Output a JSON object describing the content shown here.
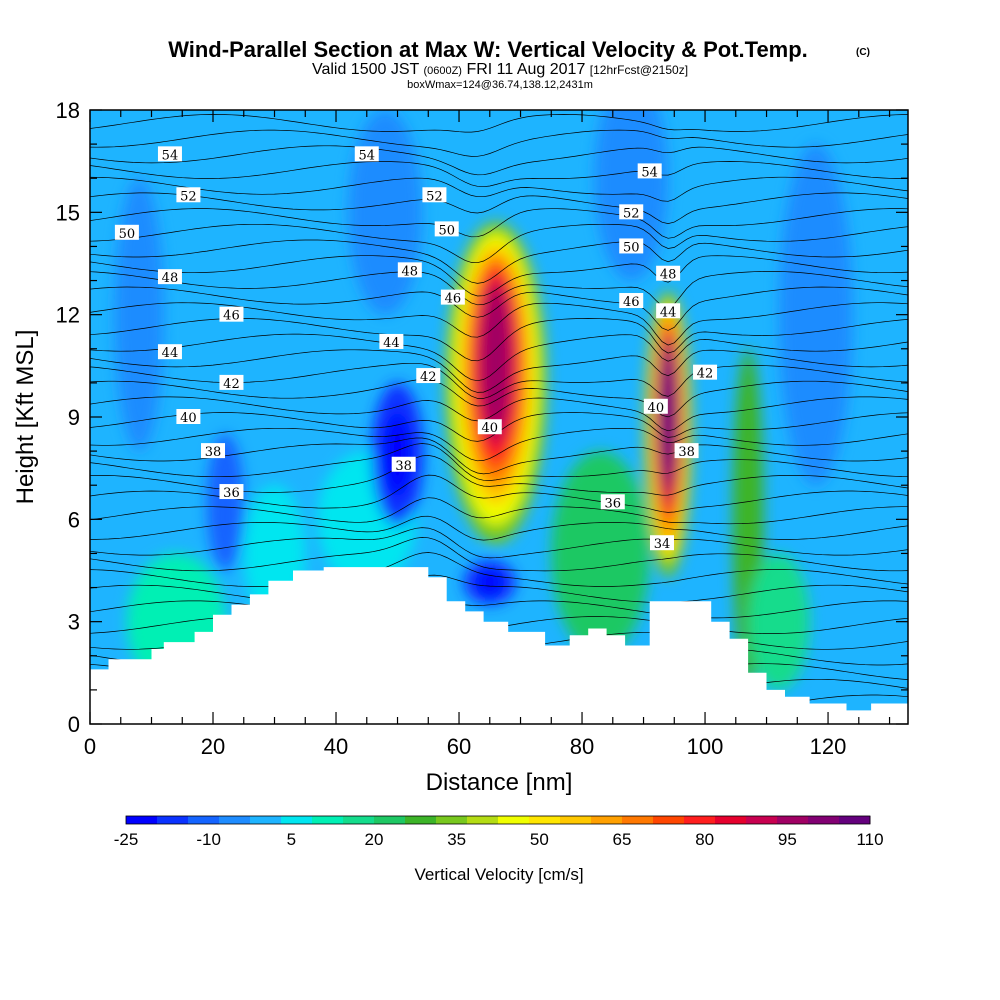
{
  "title": {
    "main": "Wind-Parallel Section at Max W: Vertical Velocity & Pot.Temp.",
    "copyright": "(C)",
    "valid_prefix": "Valid 1500 JST",
    "valid_utc": "(0600Z)",
    "valid_date": "FRI 11 Aug 2017",
    "forecast": "[12hrFcst@2150z]",
    "box": "boxWmax=124@36.74,138.12,2431m"
  },
  "chart_data": {
    "type": "heatmap",
    "xlabel": "Distance [nm]",
    "ylabel": "Height [Kft MSL]",
    "xlim": [
      0,
      133
    ],
    "ylim": [
      0,
      18
    ],
    "x_ticks": [
      0,
      20,
      40,
      60,
      80,
      100,
      120
    ],
    "y_ticks": [
      0,
      3,
      6,
      9,
      12,
      15,
      18
    ],
    "colorbar": {
      "label": "Vertical Velocity [cm/s]",
      "tick_labels": [
        "-25",
        "-10",
        "5",
        "20",
        "35",
        "50",
        "65",
        "80",
        "95",
        "110"
      ],
      "tick_values": [
        -25,
        -10,
        5,
        20,
        35,
        50,
        65,
        80,
        95,
        110
      ],
      "bounds": [
        -25,
        110
      ],
      "colors": [
        "#0000ff",
        "#0a32ff",
        "#1464ff",
        "#1e8cff",
        "#1eb4ff",
        "#00e6f0",
        "#00f0b4",
        "#14dc8c",
        "#1ec864",
        "#3cb428",
        "#78c81e",
        "#b4dc14",
        "#f0ff00",
        "#ffe600",
        "#ffc800",
        "#ffa000",
        "#ff7800",
        "#ff4600",
        "#ff1e1e",
        "#e6002d",
        "#c80050",
        "#a00064",
        "#820073",
        "#64007d"
      ]
    },
    "updrafts": [
      {
        "x": 66,
        "ymin": 5.5,
        "ymax": 14.5,
        "peak_w": 95,
        "peak_height": 11
      },
      {
        "x": 94,
        "ymin": 4.5,
        "ymax": 12.5,
        "peak_w": 110,
        "peak_height": 8
      }
    ],
    "downdrafts": [
      {
        "x": 50,
        "ymin": 5.8,
        "ymax": 10,
        "min_w": -25
      },
      {
        "x": 65,
        "ymin": 3.5,
        "ymax": 4.8,
        "min_w": -25
      }
    ],
    "terrain": [
      [
        0,
        1.6
      ],
      [
        3,
        1.6
      ],
      [
        3,
        1.9
      ],
      [
        10,
        1.9
      ],
      [
        10,
        2.2
      ],
      [
        12,
        2.2
      ],
      [
        12,
        2.4
      ],
      [
        17,
        2.4
      ],
      [
        17,
        2.7
      ],
      [
        20,
        2.7
      ],
      [
        20,
        3.2
      ],
      [
        23,
        3.2
      ],
      [
        23,
        3.5
      ],
      [
        26,
        3.5
      ],
      [
        26,
        3.8
      ],
      [
        29,
        3.8
      ],
      [
        29,
        4.2
      ],
      [
        33,
        4.2
      ],
      [
        33,
        4.5
      ],
      [
        38,
        4.5
      ],
      [
        38,
        4.6
      ],
      [
        55,
        4.6
      ],
      [
        55,
        4.3
      ],
      [
        58,
        4.3
      ],
      [
        58,
        3.6
      ],
      [
        61,
        3.6
      ],
      [
        61,
        3.3
      ],
      [
        64,
        3.3
      ],
      [
        64,
        3.0
      ],
      [
        68,
        3.0
      ],
      [
        68,
        2.7
      ],
      [
        74,
        2.7
      ],
      [
        74,
        2.3
      ],
      [
        78,
        2.3
      ],
      [
        78,
        2.6
      ],
      [
        81,
        2.6
      ],
      [
        81,
        2.8
      ],
      [
        84,
        2.8
      ],
      [
        84,
        2.6
      ],
      [
        87,
        2.6
      ],
      [
        87,
        2.3
      ],
      [
        91,
        2.3
      ],
      [
        91,
        3.6
      ],
      [
        101,
        3.6
      ],
      [
        101,
        3.0
      ],
      [
        104,
        3.0
      ],
      [
        104,
        2.5
      ],
      [
        107,
        2.5
      ],
      [
        107,
        1.5
      ],
      [
        110,
        1.5
      ],
      [
        110,
        1.0
      ],
      [
        113,
        1.0
      ],
      [
        113,
        0.8
      ],
      [
        117,
        0.8
      ],
      [
        117,
        0.6
      ],
      [
        120,
        0.6
      ],
      [
        120,
        0.6
      ],
      [
        123,
        0.6
      ],
      [
        123,
        0.4
      ],
      [
        127,
        0.4
      ],
      [
        127,
        0.6
      ],
      [
        133,
        0.6
      ]
    ],
    "isentrope_labels": [
      {
        "text": "54",
        "x": 13,
        "y": 16.7
      },
      {
        "text": "54",
        "x": 45,
        "y": 16.7
      },
      {
        "text": "54",
        "x": 91,
        "y": 16.2
      },
      {
        "text": "52",
        "x": 16,
        "y": 15.5
      },
      {
        "text": "52",
        "x": 56,
        "y": 15.5
      },
      {
        "text": "52",
        "x": 88,
        "y": 15.0
      },
      {
        "text": "50",
        "x": 6,
        "y": 14.4
      },
      {
        "text": "50",
        "x": 58,
        "y": 14.5
      },
      {
        "text": "50",
        "x": 88,
        "y": 14.0
      },
      {
        "text": "48",
        "x": 13,
        "y": 13.1
      },
      {
        "text": "48",
        "x": 52,
        "y": 13.3
      },
      {
        "text": "48",
        "x": 94,
        "y": 13.2
      },
      {
        "text": "46",
        "x": 23,
        "y": 12.0
      },
      {
        "text": "46",
        "x": 59,
        "y": 12.5
      },
      {
        "text": "46",
        "x": 88,
        "y": 12.4
      },
      {
        "text": "44",
        "x": 13,
        "y": 10.9
      },
      {
        "text": "44",
        "x": 49,
        "y": 11.2
      },
      {
        "text": "44",
        "x": 94,
        "y": 12.1
      },
      {
        "text": "42",
        "x": 23,
        "y": 10.0
      },
      {
        "text": "42",
        "x": 55,
        "y": 10.2
      },
      {
        "text": "42",
        "x": 100,
        "y": 10.3
      },
      {
        "text": "40",
        "x": 16,
        "y": 9.0
      },
      {
        "text": "40",
        "x": 65,
        "y": 8.7
      },
      {
        "text": "40",
        "x": 92,
        "y": 9.3
      },
      {
        "text": "38",
        "x": 20,
        "y": 8.0
      },
      {
        "text": "38",
        "x": 51,
        "y": 7.6
      },
      {
        "text": "38",
        "x": 97,
        "y": 8.0
      },
      {
        "text": "36",
        "x": 23,
        "y": 6.8
      },
      {
        "text": "36",
        "x": 85,
        "y": 6.5
      },
      {
        "text": "34",
        "x": 93,
        "y": 5.3
      }
    ]
  }
}
